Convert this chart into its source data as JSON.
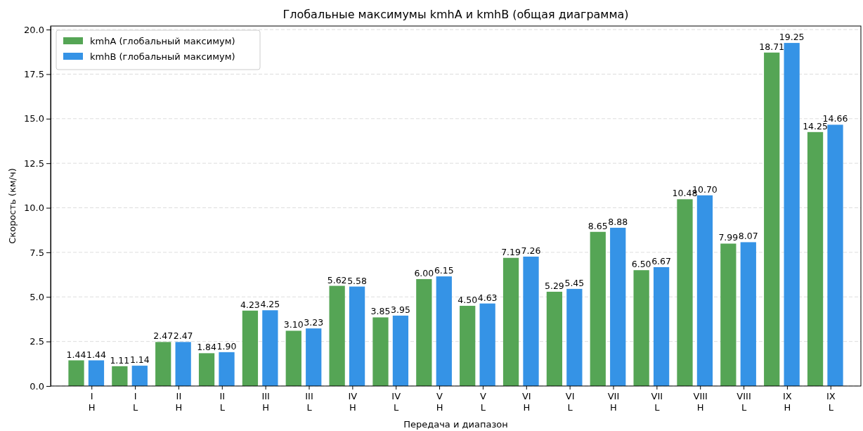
{
  "chart_data": {
    "type": "bar",
    "title": "Глобальные максимумы kmhA и kmhB (общая диаграмма)",
    "xlabel": "Передача и диапазон",
    "ylabel": "Скорость (км/ч)",
    "categories": [
      "I\nH",
      "I\nL",
      "II\nH",
      "II\nL",
      "III\nH",
      "III\nL",
      "IV\nH",
      "IV\nL",
      "V\nH",
      "V\nL",
      "VI\nH",
      "VI\nL",
      "VII\nH",
      "VII\nL",
      "VIII\nH",
      "VIII\nL",
      "IX\nH",
      "IX\nL"
    ],
    "series": [
      {
        "name": "kmhA (глобальный максимум)",
        "color": "#55a555",
        "values": [
          1.44,
          1.11,
          2.47,
          1.84,
          4.23,
          3.1,
          5.62,
          3.85,
          6.0,
          4.5,
          7.19,
          5.29,
          8.65,
          6.5,
          10.48,
          7.99,
          18.71,
          14.25
        ],
        "value_labels": [
          "1.44",
          "1.11",
          "2.47",
          "1.84",
          "4.23",
          "3.10",
          "5.62",
          "3.85",
          "6.00",
          "4.50",
          "7.19",
          "5.29",
          "8.65",
          "6.50",
          "10.48",
          "7.99",
          "18.71",
          "14.25"
        ]
      },
      {
        "name": "kmhB (глобальный максимум)",
        "color": "#3593e6",
        "values": [
          1.44,
          1.14,
          2.47,
          1.9,
          4.25,
          3.23,
          5.58,
          3.95,
          6.15,
          4.63,
          7.26,
          5.45,
          8.88,
          6.67,
          10.7,
          8.07,
          19.25,
          14.66
        ],
        "value_labels": [
          "1.44",
          "1.14",
          "2.47",
          "1.90",
          "4.25",
          "3.23",
          "5.58",
          "3.95",
          "6.15",
          "4.63",
          "7.26",
          "5.45",
          "8.88",
          "6.67",
          "10.70",
          "8.07",
          "19.25",
          "14.66"
        ]
      }
    ],
    "ylim": [
      0,
      20.2
    ],
    "yticks": [
      {
        "value": 0,
        "label": "0.0"
      },
      {
        "value": 2.5,
        "label": "2.5"
      },
      {
        "value": 5,
        "label": "5.0"
      },
      {
        "value": 7.5,
        "label": "7.5"
      },
      {
        "value": 10,
        "label": "10.0"
      },
      {
        "value": 12.5,
        "label": "12.5"
      },
      {
        "value": 15,
        "label": "15.0"
      },
      {
        "value": 17.5,
        "label": "17.5"
      },
      {
        "value": 20,
        "label": "20.0"
      }
    ],
    "grid": "y",
    "legend": "top left"
  }
}
